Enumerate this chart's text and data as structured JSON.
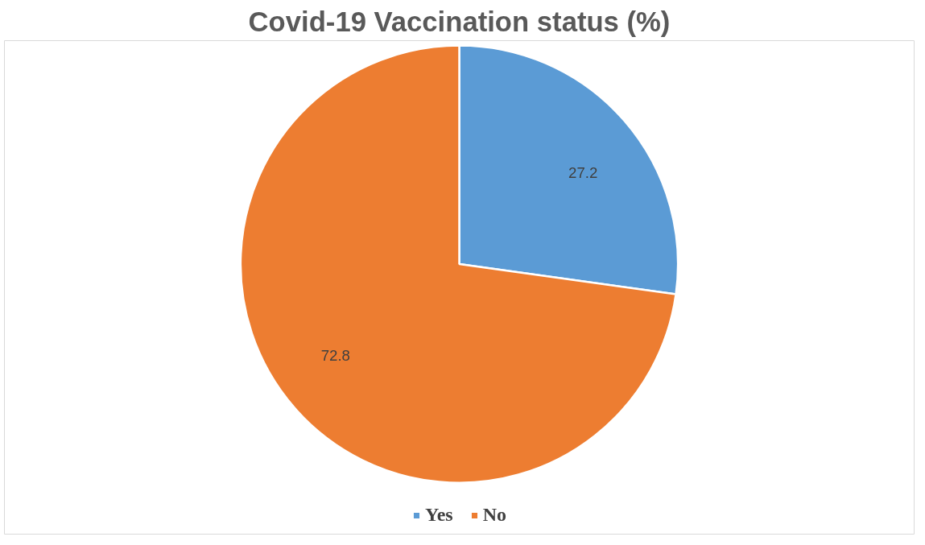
{
  "chart_data": {
    "type": "pie",
    "title": "Covid-19 Vaccination status (%)",
    "categories": [
      "Yes",
      "No"
    ],
    "values": [
      27.2,
      72.8
    ],
    "colors": [
      "#5b9bd5",
      "#ed7d31"
    ],
    "data_labels": true,
    "legend": "bottom"
  }
}
